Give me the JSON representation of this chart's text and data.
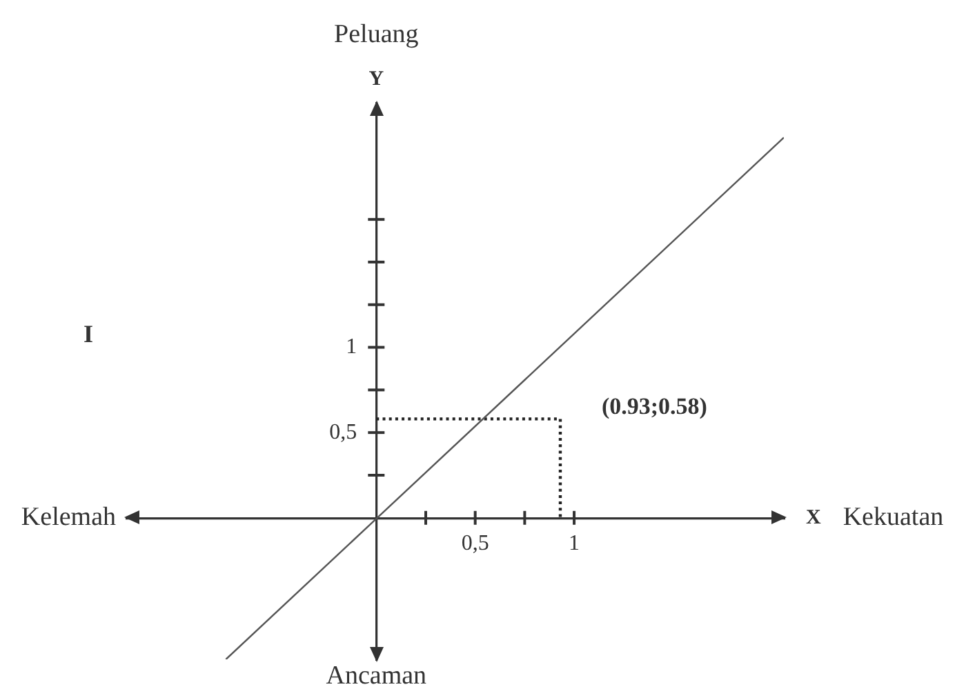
{
  "chart_data": {
    "type": "line",
    "xlabel": "X",
    "ylabel": "Y",
    "xlim": [
      -1.26,
      2.06
    ],
    "ylim": [
      -0.83,
      2.43
    ],
    "xticks": [
      {
        "value": 0.25,
        "label": null
      },
      {
        "value": 0.5,
        "label": "0,5"
      },
      {
        "value": 0.75,
        "label": null
      },
      {
        "value": 1,
        "label": "1"
      }
    ],
    "yticks": [
      {
        "value": 0.25,
        "label": null
      },
      {
        "value": 0.5,
        "label": "0,5"
      },
      {
        "value": 0.75,
        "label": null
      },
      {
        "value": 1,
        "label": "1"
      },
      {
        "value": 1.25,
        "label": null
      },
      {
        "value": 1.5,
        "label": null
      },
      {
        "value": 1.75,
        "label": null
      }
    ],
    "marker": "none",
    "series": [
      {
        "color": "#555555",
        "x": [
          -0.76,
          2.06
        ],
        "values": [
          -0.83,
          2.23
        ],
        "line_style": "solid"
      },
      {
        "color": "#222222",
        "x": [
          0,
          0.93,
          0.93
        ],
        "values": [
          0.58,
          0.58,
          0
        ],
        "line_style": "dotted"
      }
    ],
    "annotations": [
      "Peluang",
      "I",
      "Kelemah",
      "Kekuatan",
      "Ancaman",
      {
        "text": "(0.93;0.58)",
        "x": 0.93,
        "y": 0.58
      }
    ]
  }
}
